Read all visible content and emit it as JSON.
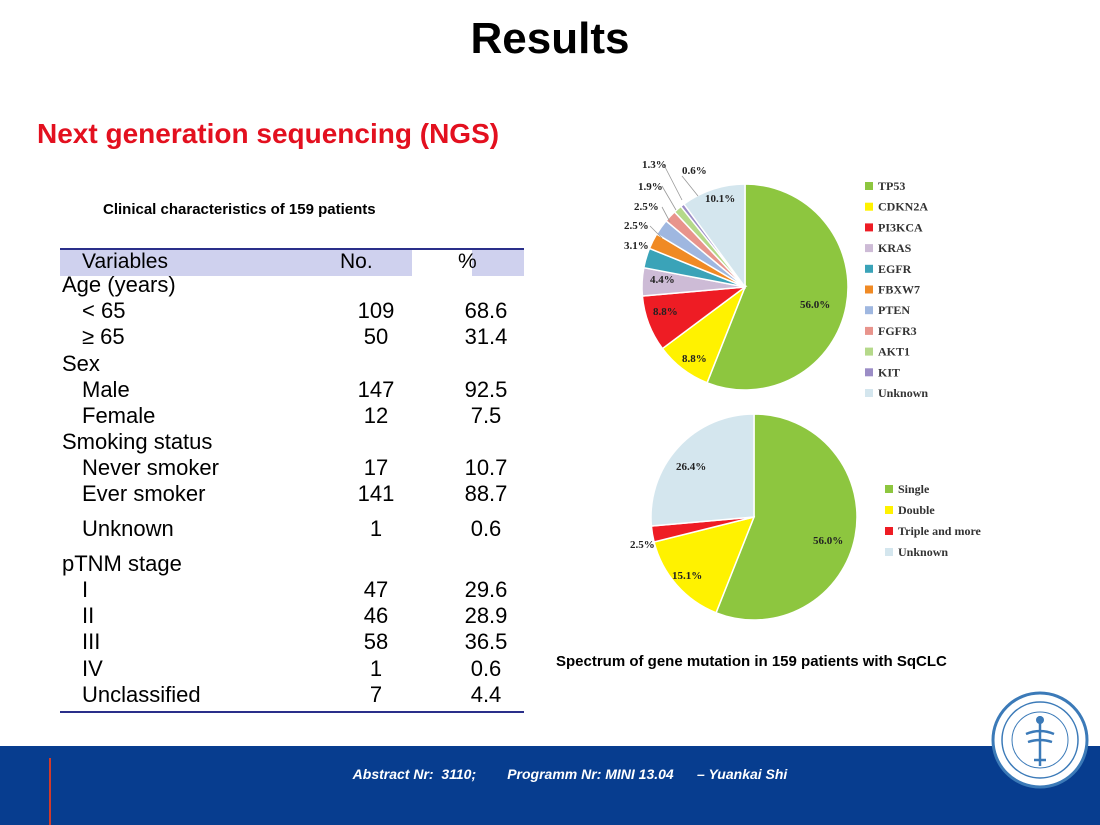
{
  "slide": {
    "title": "Results",
    "subtitle": "Next generation sequencing (NGS)",
    "table_caption": "Clinical characteristics of 159 patients",
    "pie_caption": "Spectrum of gene mutation in 159 patients with SqCLC",
    "footer_text": "Abstract Nr:  3110;        Programm Nr: MINI 13.04      – Yuankai Shi"
  },
  "table": {
    "headers": [
      "Variables",
      "No.",
      "%"
    ],
    "rows": [
      {
        "label": "Age (years)",
        "no": "",
        "pct": "",
        "indent": false
      },
      {
        "label": "< 65",
        "no": "109",
        "pct": "68.6",
        "indent": true
      },
      {
        "label": "≥ 65",
        "no": "50",
        "pct": "31.4",
        "indent": true
      },
      {
        "label": "Sex",
        "no": "",
        "pct": "",
        "indent": false
      },
      {
        "label": "Male",
        "no": "147",
        "pct": "92.5",
        "indent": true
      },
      {
        "label": "Female",
        "no": "12",
        "pct": "7.5",
        "indent": true
      },
      {
        "label": "Smoking status",
        "no": "",
        "pct": "",
        "indent": false
      },
      {
        "label": "Never smoker",
        "no": "17",
        "pct": "10.7",
        "indent": true
      },
      {
        "label": "Ever smoker",
        "no": "141",
        "pct": "88.7",
        "indent": true
      },
      {
        "label": "Unknown",
        "no": "1",
        "pct": "0.6",
        "indent": true
      },
      {
        "label": "pTNM stage",
        "no": "",
        "pct": "",
        "indent": false
      },
      {
        "label": "I",
        "no": "47",
        "pct": "29.6",
        "indent": true
      },
      {
        "label": "II",
        "no": "46",
        "pct": "28.9",
        "indent": true
      },
      {
        "label": "III",
        "no": "58",
        "pct": "36.5",
        "indent": true
      },
      {
        "label": "IV",
        "no": "1",
        "pct": "0.6",
        "indent": true
      },
      {
        "label": "Unclassified",
        "no": "7",
        "pct": "4.4",
        "indent": true
      }
    ]
  },
  "chart_data": [
    {
      "type": "pie",
      "title": "",
      "legend_position": "right",
      "slices": [
        {
          "label": "TP53",
          "value": 56.0,
          "value_label": "56.0%",
          "color": "#8dc63f"
        },
        {
          "label": "CDKN2A",
          "value": 8.8,
          "value_label": "8.8%",
          "color": "#fff200"
        },
        {
          "label": "PI3KCA",
          "value": 8.8,
          "value_label": "8.8%",
          "color": "#ee1c24"
        },
        {
          "label": "KRAS",
          "value": 4.4,
          "value_label": "4.4%",
          "color": "#cdbbd6"
        },
        {
          "label": "EGFR",
          "value": 3.1,
          "value_label": "3.1%",
          "color": "#3aa3b8"
        },
        {
          "label": "FBXW7",
          "value": 2.5,
          "value_label": "2.5%",
          "color": "#f08a24"
        },
        {
          "label": "PTEN",
          "value": 2.5,
          "value_label": "2.5%",
          "color": "#9fb7e0"
        },
        {
          "label": "FGFR3",
          "value": 1.9,
          "value_label": "1.9%",
          "color": "#e8948c"
        },
        {
          "label": "AKT1",
          "value": 1.3,
          "value_label": "1.3%",
          "color": "#b5d98a"
        },
        {
          "label": "KIT",
          "value": 0.6,
          "value_label": "0.6%",
          "color": "#9b8dc6"
        },
        {
          "label": "Unknown",
          "value": 10.1,
          "value_label": "10.1%",
          "color": "#d4e6ee"
        }
      ]
    },
    {
      "type": "pie",
      "title": "",
      "legend_position": "right",
      "slices": [
        {
          "label": "Single",
          "value": 56.0,
          "value_label": "56.0%",
          "color": "#8dc63f"
        },
        {
          "label": "Double",
          "value": 15.1,
          "value_label": "15.1%",
          "color": "#fff200"
        },
        {
          "label": "Triple and more",
          "value": 2.5,
          "value_label": "2.5%",
          "color": "#ee1c24"
        },
        {
          "label": "Unknown",
          "value": 26.4,
          "value_label": "26.4%",
          "color": "#d4e6ee"
        }
      ]
    }
  ]
}
